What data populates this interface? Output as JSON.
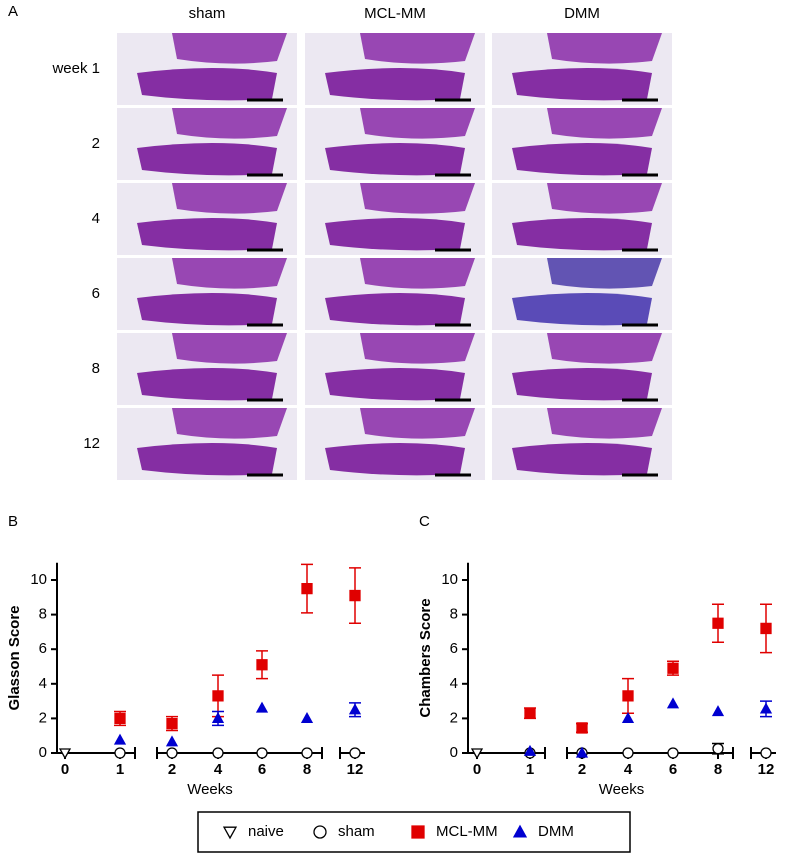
{
  "panel_a": {
    "label": "A",
    "columns": [
      "sham",
      "MCL-MM",
      "DMM"
    ],
    "rows": [
      "week 1",
      "2",
      "4",
      "6",
      "8",
      "12"
    ]
  },
  "chart_data": [
    {
      "type": "scatter",
      "panel": "B",
      "y_label": "Glasson Score",
      "x_label": "Weeks",
      "categories": [
        "0",
        "1",
        "2",
        "4",
        "6",
        "8",
        "12"
      ],
      "ylim": [
        0,
        11
      ],
      "yticks": [
        0,
        2,
        4,
        6,
        8,
        10
      ],
      "series": [
        {
          "name": "naive",
          "color": "#000000",
          "marker": "triangle-down",
          "filled": false,
          "values": [
            0,
            null,
            null,
            null,
            null,
            null,
            null
          ],
          "errors": [
            null,
            null,
            null,
            null,
            null,
            null,
            null
          ]
        },
        {
          "name": "sham",
          "color": "#000000",
          "marker": "circle",
          "filled": false,
          "values": [
            null,
            0,
            0,
            0,
            0,
            0,
            0
          ],
          "errors": [
            null,
            null,
            null,
            null,
            null,
            null,
            null
          ]
        },
        {
          "name": "MCL-MM",
          "color": "#e00000",
          "marker": "square",
          "filled": true,
          "values": [
            null,
            2.0,
            1.7,
            3.3,
            5.1,
            9.5,
            9.1
          ],
          "errors": [
            null,
            0.4,
            0.4,
            1.2,
            0.8,
            1.4,
            1.6
          ]
        },
        {
          "name": "DMM",
          "color": "#0000d0",
          "marker": "triangle-up",
          "filled": true,
          "values": [
            null,
            0.75,
            0.65,
            2.0,
            2.6,
            2.0,
            2.5
          ],
          "errors": [
            null,
            null,
            null,
            0.4,
            null,
            null,
            0.4
          ]
        }
      ]
    },
    {
      "type": "scatter",
      "panel": "C",
      "y_label": "Chambers Score",
      "x_label": "Weeks",
      "categories": [
        "0",
        "1",
        "2",
        "4",
        "6",
        "8",
        "12"
      ],
      "ylim": [
        0,
        11
      ],
      "yticks": [
        0,
        2,
        4,
        6,
        8,
        10
      ],
      "series": [
        {
          "color": "#000000",
          "marker": "triangle-down",
          "filled": false,
          "values": [
            0,
            null,
            null,
            null,
            null,
            null,
            null
          ],
          "errors": [
            null,
            null,
            null,
            null,
            null,
            null,
            null
          ]
        },
        {
          "color": "#000000",
          "marker": "circle",
          "filled": false,
          "values": [
            null,
            0,
            0,
            0,
            0,
            0.25,
            0
          ],
          "errors": [
            null,
            null,
            null,
            null,
            null,
            0.3,
            null
          ]
        },
        {
          "color": "#e00000",
          "marker": "square",
          "filled": true,
          "values": [
            null,
            2.3,
            1.45,
            3.3,
            4.9,
            7.5,
            7.2
          ],
          "errors": [
            null,
            0.3,
            0.25,
            1.0,
            0.4,
            1.1,
            1.4
          ]
        },
        {
          "color": "#0000d0",
          "marker": "triangle-up",
          "filled": true,
          "values": [
            null,
            0.1,
            0,
            2.0,
            2.85,
            2.4,
            2.55
          ],
          "errors": [
            null,
            null,
            null,
            null,
            null,
            null,
            0.45
          ]
        }
      ]
    }
  ]
}
